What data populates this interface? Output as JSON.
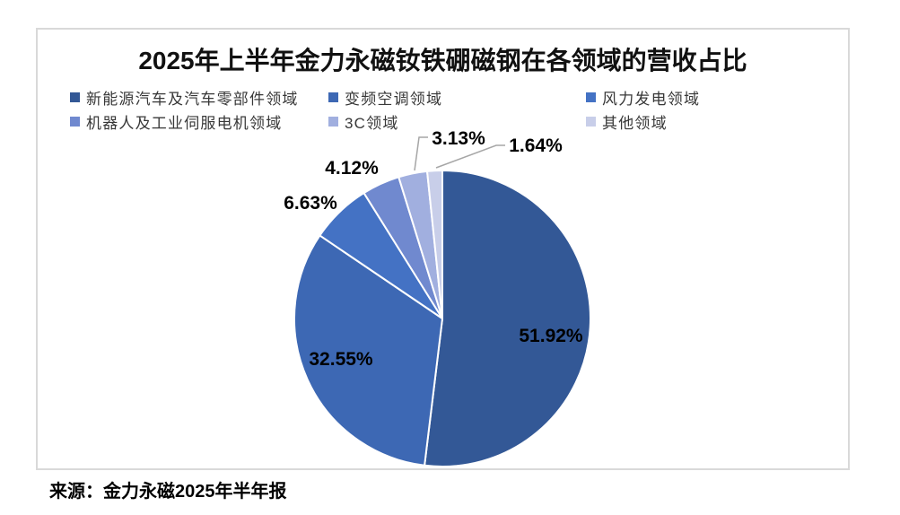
{
  "title": "2025年上半年金力永磁钕铁硼磁钢在各领域的营收占比",
  "source_note": "来源：金力永磁2025年半年报",
  "chart_data": {
    "type": "pie",
    "title": "2025年上半年金力永磁钕铁硼磁钢在各领域的营收占比",
    "categories": [
      "新能源汽车及汽车零部件领域",
      "变频空调领域",
      "风力发电领域",
      "机器人及工业伺服电机领域",
      "3C领域",
      "其他领域"
    ],
    "values": [
      51.92,
      32.55,
      6.63,
      4.12,
      3.13,
      1.64
    ],
    "unit": "%",
    "colors": [
      "#335896",
      "#3D68B4",
      "#4472C4",
      "#7089CF",
      "#A1AFDF",
      "#C8CEE9"
    ],
    "legend_position": "top",
    "legend_columns": 3,
    "data_labels": [
      "51.92%",
      "32.55%",
      "6.63%",
      "4.12%",
      "3.13%",
      "1.64%"
    ],
    "leader_line_color": "#A6A6A6",
    "frame_border_color": "#D9D9D9"
  }
}
